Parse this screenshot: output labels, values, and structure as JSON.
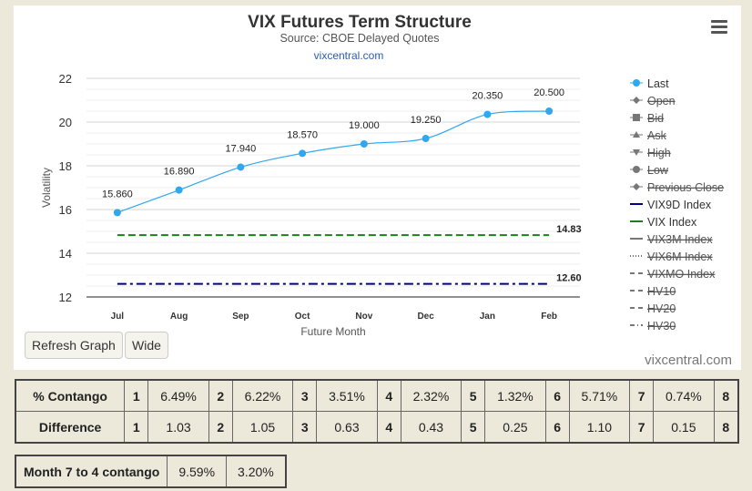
{
  "chart_data": {
    "type": "line",
    "title": "VIX Futures Term Structure",
    "subtitle": "Source: CBOE Delayed Quotes",
    "source_link": "vixcentral.com",
    "xlabel": "Future Month",
    "ylabel": "Volatility",
    "categories": [
      "Jul",
      "Aug",
      "Sep",
      "Oct",
      "Nov",
      "Dec",
      "Jan",
      "Feb"
    ],
    "yticks": [
      "12",
      "14",
      "16",
      "18",
      "20",
      "22"
    ],
    "ylim": [
      12,
      22
    ],
    "grid": true,
    "legend_position": "right",
    "series": [
      {
        "name": "Last",
        "values": [
          15.86,
          16.89,
          17.94,
          18.57,
          19.0,
          19.25,
          20.35,
          20.5
        ],
        "labels": [
          "15.860",
          "16.890",
          "17.940",
          "18.570",
          "19.000",
          "19.250",
          "20.350",
          "20.500"
        ],
        "color": "#2fa8ee"
      },
      {
        "name": "VIX Index",
        "value": 14.83,
        "label": "14.83",
        "color": "#1e7d1e"
      },
      {
        "name": "VIX9D Index",
        "value": 12.6,
        "label": "12.60",
        "color": "#000080"
      }
    ],
    "legend": [
      {
        "name": "Last",
        "hidden": false,
        "symbol": "circle-line",
        "color": "#2fa8ee"
      },
      {
        "name": "Open",
        "hidden": true,
        "symbol": "diamond",
        "color": "#666666"
      },
      {
        "name": "Bid",
        "hidden": true,
        "symbol": "square",
        "color": "#666666"
      },
      {
        "name": "Ask",
        "hidden": true,
        "symbol": "triangle",
        "color": "#666666"
      },
      {
        "name": "High",
        "hidden": true,
        "symbol": "triangle-down",
        "color": "#666666"
      },
      {
        "name": "Low",
        "hidden": true,
        "symbol": "circle",
        "color": "#666666"
      },
      {
        "name": "Previous Close",
        "hidden": true,
        "symbol": "diamond",
        "color": "#666666"
      },
      {
        "name": "VIX9D Index",
        "hidden": false,
        "symbol": "solid",
        "color": "#000080"
      },
      {
        "name": "VIX Index",
        "hidden": false,
        "symbol": "solid",
        "color": "#1e7d1e"
      },
      {
        "name": "VIX3M Index",
        "hidden": true,
        "symbol": "solid",
        "color": "#666666"
      },
      {
        "name": "VIX6M Index",
        "hidden": true,
        "symbol": "dotted",
        "color": "#666666"
      },
      {
        "name": "VIXMO Index",
        "hidden": true,
        "symbol": "dash",
        "color": "#666666"
      },
      {
        "name": "HV10",
        "hidden": true,
        "symbol": "dash",
        "color": "#666666"
      },
      {
        "name": "HV20",
        "hidden": true,
        "symbol": "dash",
        "color": "#666666"
      },
      {
        "name": "HV30",
        "hidden": true,
        "symbol": "dashdot",
        "color": "#666666"
      }
    ]
  },
  "controls": {
    "refresh_label": "Refresh Graph",
    "wide_label": "Wide"
  },
  "brand": "vixcentral.com",
  "contango_table": {
    "rows": [
      {
        "label": "% Contango",
        "cells": [
          [
            "1",
            "6.49%"
          ],
          [
            "2",
            "6.22%"
          ],
          [
            "3",
            "3.51%"
          ],
          [
            "4",
            "2.32%"
          ],
          [
            "5",
            "1.32%"
          ],
          [
            "6",
            "5.71%"
          ],
          [
            "7",
            "0.74%"
          ],
          [
            "8",
            ""
          ]
        ]
      },
      {
        "label": "Difference",
        "cells": [
          [
            "1",
            "1.03"
          ],
          [
            "2",
            "1.05"
          ],
          [
            "3",
            "0.63"
          ],
          [
            "4",
            "0.43"
          ],
          [
            "5",
            "0.25"
          ],
          [
            "6",
            "1.10"
          ],
          [
            "7",
            "0.15"
          ],
          [
            "8",
            ""
          ]
        ]
      }
    ]
  },
  "month_table": {
    "label": "Month 7 to 4 contango",
    "values": [
      "9.59%",
      "3.20%"
    ]
  }
}
